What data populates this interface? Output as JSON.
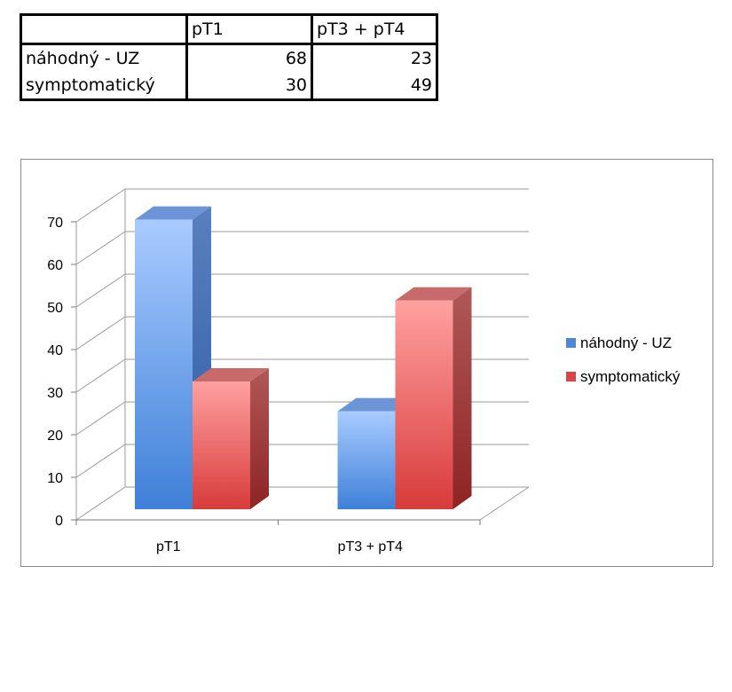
{
  "table": {
    "header": [
      "",
      "pT1",
      "pT3 + pT4"
    ],
    "rows": [
      {
        "label": "náhodný - UZ",
        "values": [
          "68",
          "23"
        ]
      },
      {
        "label": "symptomatický",
        "values": [
          "30",
          "49"
        ]
      }
    ]
  },
  "chart_data": {
    "type": "bar",
    "style": "3d-clustered-column",
    "categories": [
      "pT1",
      "pT3 + pT4"
    ],
    "series": [
      {
        "name": "náhodný - UZ",
        "values": [
          68,
          23
        ],
        "color": "#5f93e0"
      },
      {
        "name": "symptomatický",
        "values": [
          30,
          49
        ],
        "color": "#e04a4a"
      }
    ],
    "ylim": [
      0,
      70
    ],
    "yticks": [
      0,
      10,
      20,
      30,
      40,
      50,
      60,
      70
    ],
    "grid": true,
    "legend": "right"
  }
}
